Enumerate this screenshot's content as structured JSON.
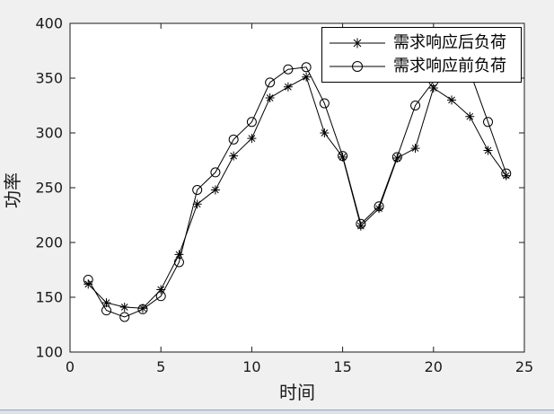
{
  "window": {
    "bg_color": "#f0f0f0"
  },
  "chart_data": {
    "type": "line",
    "title": "",
    "xlabel": "时间",
    "ylabel": "功率",
    "xlim": [
      0,
      25
    ],
    "ylim": [
      100,
      400
    ],
    "xticks": [
      0,
      5,
      10,
      15,
      20,
      25
    ],
    "yticks": [
      100,
      150,
      200,
      250,
      300,
      350,
      400
    ],
    "grid": false,
    "plot_bg": "#ffffff",
    "line_color": "#000000",
    "axis_color": "#1a1a1a",
    "tick_label_color": "#1a1a1a",
    "legend_position": "top-right",
    "x": [
      1,
      2,
      3,
      4,
      5,
      6,
      7,
      8,
      9,
      10,
      11,
      12,
      13,
      14,
      15,
      16,
      17,
      18,
      19,
      20,
      21,
      22,
      23,
      24
    ],
    "series": [
      {
        "name": "需求响应后负荷",
        "marker": "asterisk",
        "values": [
          162,
          145,
          141,
          140,
          157,
          189,
          235,
          248,
          279,
          295,
          332,
          342,
          351,
          300,
          278,
          215,
          231,
          277,
          286,
          341,
          330,
          315,
          284,
          261
        ]
      },
      {
        "name": "需求响应前负荷",
        "marker": "circle",
        "values": [
          166,
          138,
          132,
          139,
          151,
          182,
          248,
          264,
          294,
          310,
          346,
          358,
          360,
          327,
          279,
          217,
          233,
          278,
          325,
          347,
          363,
          356,
          310,
          263
        ]
      }
    ]
  }
}
